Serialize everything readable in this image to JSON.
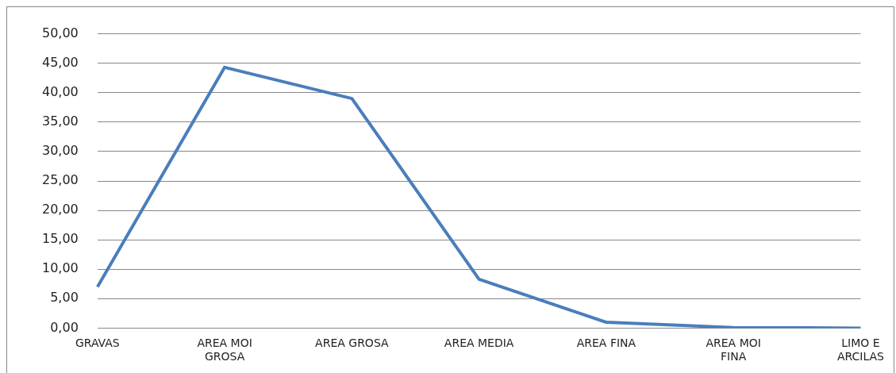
{
  "chart_data": {
    "type": "line",
    "categories": [
      "GRAVAS",
      "AREA MOI GROSA",
      "AREA GROSA",
      "AREA MEDIA",
      "AREA FINA",
      "AREA MOI FINA",
      "LIMO E ARCILAS"
    ],
    "series": [
      {
        "color": "#4a7ebb",
        "values": [
          7.0,
          44.3,
          39.0,
          8.3,
          1.0,
          0.1,
          0.0
        ]
      }
    ],
    "ylim": [
      0,
      50
    ],
    "yticks": [
      {
        "value": 0,
        "label": "0,00"
      },
      {
        "value": 5,
        "label": "5,00"
      },
      {
        "value": 10,
        "label": "10,00"
      },
      {
        "value": 15,
        "label": "15,00"
      },
      {
        "value": 20,
        "label": "20,00"
      },
      {
        "value": 25,
        "label": "25,00"
      },
      {
        "value": 30,
        "label": "30,00"
      },
      {
        "value": 35,
        "label": "35,00"
      },
      {
        "value": 40,
        "label": "40,00"
      },
      {
        "value": 45,
        "label": "45,00"
      },
      {
        "value": 50,
        "label": "50,00"
      }
    ],
    "grid": "y",
    "legend": false,
    "marker": "none",
    "line_style": "solid"
  }
}
